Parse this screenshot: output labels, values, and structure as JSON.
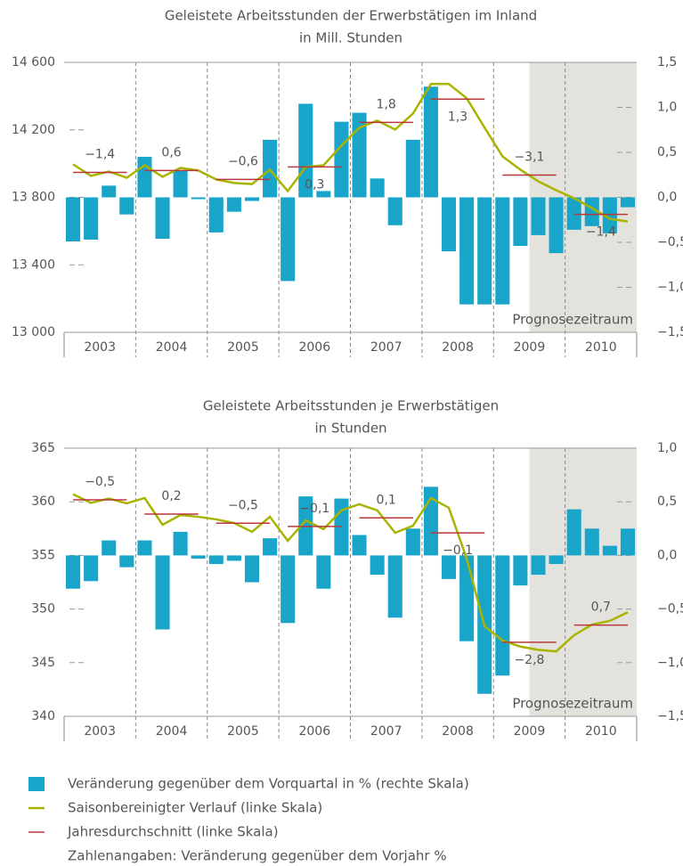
{
  "chart_data": [
    {
      "type": "combo",
      "title": "Geleistete Arbeitsstunden der Erwerbstätigen im Inland",
      "subtitle": "in Mill. Stunden",
      "x_labels": [
        "2003",
        "2004",
        "2005",
        "2006",
        "2007",
        "2008",
        "2009",
        "2010"
      ],
      "ylim": [
        13000,
        14600
      ],
      "yticks": [
        {
          "value": 13000,
          "label": "13 000"
        },
        {
          "value": 13400,
          "label": "13 400"
        },
        {
          "value": 13800,
          "label": "13 800"
        },
        {
          "value": 14200,
          "label": "14 200"
        },
        {
          "value": 14600,
          "label": "14 600"
        }
      ],
      "y2lim": [
        -1.5,
        1.5
      ],
      "y2ticks": [
        {
          "value": -1.5,
          "label": "−1,5"
        },
        {
          "value": -1.0,
          "label": "−1,0"
        },
        {
          "value": -0.5,
          "label": "−0,5"
        },
        {
          "value": 0.0,
          "label": "0,0"
        },
        {
          "value": 0.5,
          "label": "0,5"
        },
        {
          "value": 1.0,
          "label": "1,0"
        },
        {
          "value": 1.5,
          "label": "1,5"
        }
      ],
      "forecast_label": "Prognosezeitraum",
      "series": [
        {
          "type": "bar",
          "axis": "y2",
          "color": "#19a4c9",
          "values": [
            -0.49,
            -0.47,
            0.13,
            -0.19,
            0.45,
            -0.46,
            0.3,
            -0.02,
            -0.39,
            -0.16,
            -0.04,
            0.64,
            -0.93,
            1.04,
            0.07,
            0.84,
            0.94,
            0.21,
            -0.31,
            0.64,
            1.23,
            -0.6,
            -1.19,
            -1.19,
            -1.19,
            -0.54,
            -0.42,
            -0.62,
            -0.36,
            -0.32,
            -0.4,
            -0.11
          ]
        },
        {
          "type": "line",
          "color": "#a9b300",
          "values": [
            13996,
            13927,
            13953,
            13916,
            13990,
            13922,
            13975,
            13959,
            13906,
            13885,
            13879,
            13964,
            13837,
            13980,
            13990,
            14107,
            14213,
            14255,
            14202,
            14297,
            14472,
            14472,
            14387,
            14213,
            14043,
            13964,
            13895,
            13842,
            13795,
            13736,
            13673,
            13657
          ]
        },
        {
          "type": "annual",
          "color": "#b8393b",
          "values": [
            13948,
            13959,
            13906,
            13980,
            14244,
            14382,
            13932,
            13699
          ],
          "changes": [
            -1.4,
            0.6,
            -0.6,
            0.3,
            1.8,
            1.3,
            -3.1,
            -1.4
          ],
          "value_labels": [
            "−1,4",
            "0,6",
            "−0,6",
            "0,3",
            "1,8",
            "1,3",
            "−3,1",
            "−1,4"
          ]
        }
      ]
    },
    {
      "type": "combo",
      "title": "Geleistete Arbeitsstunden je Erwerbstätigen",
      "subtitle": "in Stunden",
      "x_labels": [
        "2003",
        "2004",
        "2005",
        "2006",
        "2007",
        "2008",
        "2009",
        "2010"
      ],
      "ylim": [
        340,
        365
      ],
      "yticks": [
        340,
        345,
        350,
        355,
        360,
        365
      ],
      "y2lim": [
        -1.5,
        1.0
      ],
      "y2ticks": [
        {
          "value": -1.5,
          "label": "−1,5"
        },
        {
          "value": -1.0,
          "label": "−1,0"
        },
        {
          "value": -0.5,
          "label": "−0,5"
        },
        {
          "value": 0.0,
          "label": "0,0"
        },
        {
          "value": 0.5,
          "label": "0,5"
        },
        {
          "value": 1.0,
          "label": "1,0"
        }
      ],
      "forecast_label": "Prognosezeitraum",
      "series": [
        {
          "type": "bar",
          "axis": "y2",
          "color": "#19a4c9",
          "values": [
            -0.31,
            -0.24,
            0.14,
            -0.11,
            0.14,
            -0.69,
            0.22,
            -0.03,
            -0.08,
            -0.05,
            -0.25,
            0.16,
            -0.63,
            0.55,
            -0.31,
            0.53,
            0.19,
            -0.18,
            -0.58,
            0.25,
            0.64,
            -0.22,
            -0.8,
            -1.29,
            -1.12,
            -0.28,
            -0.18,
            -0.08,
            0.43,
            0.25,
            0.09,
            0.25
          ]
        },
        {
          "type": "line",
          "color": "#a9b300",
          "values": [
            360.7,
            359.9,
            360.3,
            359.85,
            360.35,
            357.86,
            358.77,
            358.6,
            358.36,
            358.02,
            357.2,
            358.6,
            356.36,
            358.27,
            357.44,
            359.2,
            359.77,
            359.2,
            357.11,
            357.77,
            360.35,
            359.44,
            354.7,
            348.4,
            347.06,
            346.5,
            346.2,
            346.05,
            347.56,
            348.55,
            348.9,
            349.7
          ]
        },
        {
          "type": "annual",
          "color": "#b8393b",
          "values": [
            360.18,
            358.85,
            358.0,
            357.7,
            358.5,
            357.1,
            346.9,
            348.5
          ],
          "changes": [
            -0.5,
            0.2,
            -0.5,
            -0.1,
            0.1,
            -0.1,
            -2.8,
            0.7
          ],
          "value_labels": [
            "−0,5",
            "0,2",
            "−0,5",
            "−0,1",
            "0,1",
            "−0,1",
            "−2,8",
            "0,7"
          ]
        }
      ]
    }
  ],
  "legend": {
    "items": [
      "Veränderung gegenüber dem Vorquartal in % (rechte Skala)",
      "Saisonbereinigter Verlauf (linke Skala)",
      "Jahresdurchschnitt (linke Skala)"
    ],
    "note": "Zahlenangaben: Veränderung gegenüber dem Vorjahr %"
  }
}
